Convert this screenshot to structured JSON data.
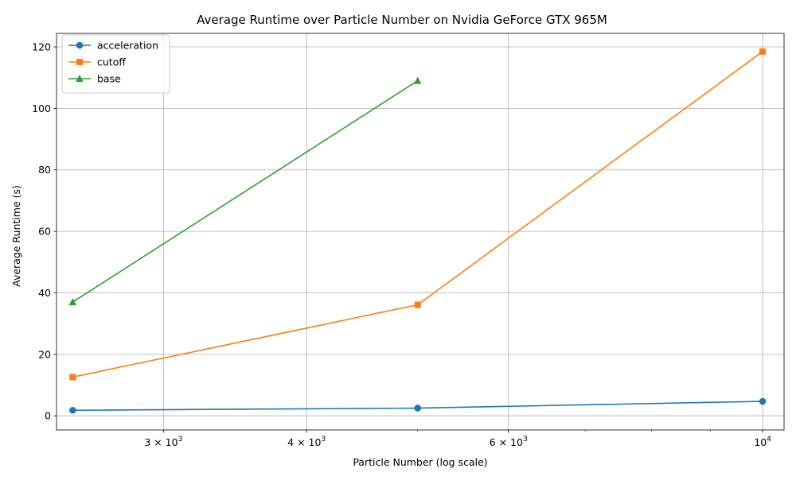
{
  "chart_data": {
    "type": "line",
    "title": "Average Runtime over Particle Number on Nvidia GeForce GTX 965M",
    "xlabel": "Particle Number (log scale)",
    "ylabel": "Average Runtime (s)",
    "xscale": "log",
    "xlim": [
      2420,
      10440
    ],
    "ylim": [
      -4.6,
      124.4
    ],
    "x_ticks": [
      {
        "value": 3000,
        "base": "3 × 10",
        "exp": "3"
      },
      {
        "value": 4000,
        "base": "4 × 10",
        "exp": "3"
      },
      {
        "value": 6000,
        "base": "6 × 10",
        "exp": "3"
      },
      {
        "value": 10000,
        "base": "10",
        "exp": "4"
      }
    ],
    "y_ticks": [
      0,
      20,
      40,
      60,
      80,
      100,
      120
    ],
    "grid": true,
    "legend_position": "upper-left",
    "series": [
      {
        "name": "acceleration",
        "color": "#1f77b4",
        "marker": "circle",
        "x": [
          2500,
          5000,
          10000
        ],
        "y": [
          1.8,
          2.5,
          4.7
        ]
      },
      {
        "name": "cutoff",
        "color": "#ff7f0e",
        "marker": "square",
        "x": [
          2500,
          5000,
          10000
        ],
        "y": [
          12.6,
          36.1,
          118.5
        ]
      },
      {
        "name": "base",
        "color": "#2ca02c",
        "marker": "triangle",
        "x": [
          2500,
          5000
        ],
        "y": [
          37.0,
          109.0
        ]
      }
    ]
  }
}
